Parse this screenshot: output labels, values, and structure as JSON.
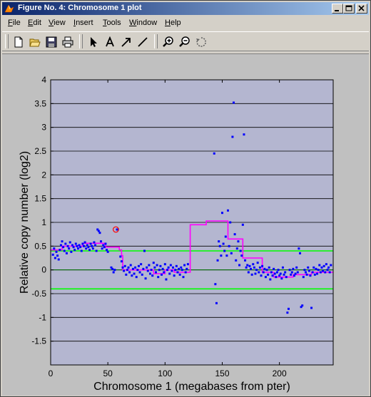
{
  "window": {
    "title": "Figure No. 4: Chromosome 1 plot",
    "controls": [
      "minimize",
      "maximize",
      "close"
    ]
  },
  "menu": {
    "items": [
      {
        "label": "File",
        "key": "F"
      },
      {
        "label": "Edit",
        "key": "E"
      },
      {
        "label": "View",
        "key": "V"
      },
      {
        "label": "Insert",
        "key": "I"
      },
      {
        "label": "Tools",
        "key": "T"
      },
      {
        "label": "Window",
        "key": "W"
      },
      {
        "label": "Help",
        "key": "H"
      }
    ]
  },
  "toolbar": {
    "tools": [
      "new-file-icon",
      "open-folder-icon",
      "save-icon",
      "print-icon",
      "select-arrow-icon",
      "text-icon",
      "arrow-icon",
      "line-icon",
      "zoom-in-icon",
      "zoom-out-icon",
      "rotate-icon"
    ]
  },
  "colors": {
    "plot_bg": "#b4b6d0",
    "figure_bg": "#c0c0c0",
    "points": "#0000ff",
    "segments": "#ff00ff",
    "threshold": "#00ff00",
    "highlight": "#ff0000"
  },
  "chart_data": {
    "type": "scatter",
    "title": "",
    "xlabel": "Chromosome 1 (megabases from pter)",
    "ylabel": "Relative copy number (log2)",
    "xlim": [
      0,
      247
    ],
    "ylim": [
      -2,
      4
    ],
    "xticks": [
      0,
      50,
      100,
      150,
      200
    ],
    "yticks": [
      -1.5,
      -1,
      -0.5,
      0,
      0.5,
      1,
      1.5,
      2,
      2.5,
      3,
      3.5,
      4
    ],
    "ytick_labels": [
      "-1.5",
      "-1",
      "-0.5",
      "0",
      "0.5",
      "1",
      "1.5",
      "2",
      "2.5",
      "3",
      "3.5",
      "4"
    ],
    "grid": "horizontal",
    "thresholds": [
      0.4,
      -0.4
    ],
    "zero_line": 0,
    "points": [
      [
        2,
        0.32
      ],
      [
        3,
        0.45
      ],
      [
        4,
        0.25
      ],
      [
        5,
        0.38
      ],
      [
        6,
        0.3
      ],
      [
        7,
        0.22
      ],
      [
        8,
        0.42
      ],
      [
        9,
        0.52
      ],
      [
        10,
        0.6
      ],
      [
        11,
        0.48
      ],
      [
        12,
        0.4
      ],
      [
        13,
        0.55
      ],
      [
        14,
        0.35
      ],
      [
        15,
        0.5
      ],
      [
        16,
        0.45
      ],
      [
        17,
        0.58
      ],
      [
        18,
        0.38
      ],
      [
        19,
        0.52
      ],
      [
        20,
        0.48
      ],
      [
        21,
        0.42
      ],
      [
        22,
        0.55
      ],
      [
        23,
        0.5
      ],
      [
        24,
        0.45
      ],
      [
        25,
        0.52
      ],
      [
        26,
        0.48
      ],
      [
        27,
        0.4
      ],
      [
        28,
        0.55
      ],
      [
        29,
        0.5
      ],
      [
        30,
        0.58
      ],
      [
        31,
        0.45
      ],
      [
        32,
        0.52
      ],
      [
        33,
        0.48
      ],
      [
        34,
        0.42
      ],
      [
        35,
        0.55
      ],
      [
        36,
        0.5
      ],
      [
        37,
        0.45
      ],
      [
        38,
        0.58
      ],
      [
        39,
        0.52
      ],
      [
        40,
        0.4
      ],
      [
        41,
        0.85
      ],
      [
        42,
        0.82
      ],
      [
        43,
        0.78
      ],
      [
        44,
        0.6
      ],
      [
        45,
        0.45
      ],
      [
        46,
        0.52
      ],
      [
        47,
        0.48
      ],
      [
        48,
        0.55
      ],
      [
        49,
        0.42
      ],
      [
        50,
        0.38
      ],
      [
        53,
        0.05
      ],
      [
        54,
        0.02
      ],
      [
        55,
        -0.05
      ],
      [
        56,
        0.0
      ],
      [
        58,
        0.85
      ],
      [
        61,
        0.28
      ],
      [
        62,
        0.18
      ],
      [
        63,
        0.05
      ],
      [
        64,
        -0.02
      ],
      [
        65,
        0.08
      ],
      [
        66,
        -0.1
      ],
      [
        67,
        0.0
      ],
      [
        68,
        0.05
      ],
      [
        69,
        -0.05
      ],
      [
        70,
        0.1
      ],
      [
        71,
        -0.12
      ],
      [
        72,
        0.02
      ],
      [
        73,
        -0.08
      ],
      [
        74,
        0.05
      ],
      [
        75,
        -0.15
      ],
      [
        76,
        0.0
      ],
      [
        77,
        0.08
      ],
      [
        78,
        -0.05
      ],
      [
        79,
        0.12
      ],
      [
        80,
        -0.1
      ],
      [
        81,
        0.02
      ],
      [
        82,
        0.4
      ],
      [
        83,
        -0.18
      ],
      [
        84,
        0.05
      ],
      [
        85,
        -0.02
      ],
      [
        86,
        0.1
      ],
      [
        87,
        -0.08
      ],
      [
        88,
        0.0
      ],
      [
        89,
        -0.12
      ],
      [
        90,
        0.15
      ],
      [
        91,
        0.05
      ],
      [
        92,
        -0.05
      ],
      [
        93,
        0.1
      ],
      [
        94,
        -0.15
      ],
      [
        95,
        0.0
      ],
      [
        96,
        0.08
      ],
      [
        97,
        -0.1
      ],
      [
        98,
        0.02
      ],
      [
        99,
        -0.05
      ],
      [
        100,
        0.12
      ],
      [
        101,
        -0.2
      ],
      [
        102,
        0.0
      ],
      [
        103,
        0.05
      ],
      [
        104,
        -0.08
      ],
      [
        105,
        0.1
      ],
      [
        106,
        -0.02
      ],
      [
        107,
        0.05
      ],
      [
        108,
        -0.12
      ],
      [
        109,
        0.0
      ],
      [
        110,
        0.08
      ],
      [
        111,
        -0.05
      ],
      [
        112,
        0.02
      ],
      [
        113,
        -0.1
      ],
      [
        114,
        0.05
      ],
      [
        115,
        0.0
      ],
      [
        116,
        -0.15
      ],
      [
        117,
        0.1
      ],
      [
        118,
        -0.05
      ],
      [
        119,
        0.02
      ],
      [
        120,
        0.12
      ],
      [
        143,
        2.45
      ],
      [
        144,
        -0.3
      ],
      [
        145,
        -0.7
      ],
      [
        146,
        0.2
      ],
      [
        147,
        0.6
      ],
      [
        148,
        0.5
      ],
      [
        149,
        0.3
      ],
      [
        150,
        1.2
      ],
      [
        151,
        0.55
      ],
      [
        152,
        0.4
      ],
      [
        153,
        0.7
      ],
      [
        154,
        0.3
      ],
      [
        155,
        1.25
      ],
      [
        156,
        0.5
      ],
      [
        157,
        1.0
      ],
      [
        158,
        0.35
      ],
      [
        159,
        2.8
      ],
      [
        160,
        3.52
      ],
      [
        161,
        0.75
      ],
      [
        162,
        0.2
      ],
      [
        163,
        0.45
      ],
      [
        164,
        0.6
      ],
      [
        165,
        0.1
      ],
      [
        166,
        0.4
      ],
      [
        167,
        0.3
      ],
      [
        168,
        0.95
      ],
      [
        169,
        2.85
      ],
      [
        170,
        0.2
      ],
      [
        171,
        0.05
      ],
      [
        172,
        0.1
      ],
      [
        173,
        -0.05
      ],
      [
        174,
        0.08
      ],
      [
        175,
        0.02
      ],
      [
        176,
        -0.1
      ],
      [
        177,
        0.12
      ],
      [
        178,
        0.05
      ],
      [
        179,
        -0.08
      ],
      [
        180,
        0.0
      ],
      [
        181,
        0.15
      ],
      [
        182,
        -0.05
      ],
      [
        183,
        0.05
      ],
      [
        184,
        -0.12
      ],
      [
        185,
        0.08
      ],
      [
        186,
        -0.05
      ],
      [
        187,
        0.02
      ],
      [
        188,
        -0.15
      ],
      [
        189,
        0.0
      ],
      [
        190,
        -0.1
      ],
      [
        191,
        0.05
      ],
      [
        192,
        -0.2
      ],
      [
        193,
        -0.05
      ],
      [
        194,
        -0.12
      ],
      [
        195,
        0.02
      ],
      [
        196,
        -0.08
      ],
      [
        197,
        -0.15
      ],
      [
        198,
        -0.05
      ],
      [
        199,
        0.0
      ],
      [
        200,
        -0.12
      ],
      [
        201,
        -0.08
      ],
      [
        202,
        -0.18
      ],
      [
        203,
        0.05
      ],
      [
        204,
        -0.1
      ],
      [
        205,
        -0.05
      ],
      [
        206,
        -0.15
      ],
      [
        207,
        -0.9
      ],
      [
        208,
        -0.82
      ],
      [
        209,
        0.0
      ],
      [
        210,
        -0.1
      ],
      [
        211,
        -0.05
      ],
      [
        212,
        0.02
      ],
      [
        213,
        -0.12
      ],
      [
        214,
        -0.08
      ],
      [
        215,
        0.05
      ],
      [
        216,
        -0.05
      ],
      [
        217,
        0.45
      ],
      [
        218,
        0.35
      ],
      [
        219,
        -0.78
      ],
      [
        220,
        -0.75
      ],
      [
        221,
        -0.15
      ],
      [
        222,
        0.0
      ],
      [
        223,
        -0.05
      ],
      [
        224,
        -0.1
      ],
      [
        225,
        0.05
      ],
      [
        226,
        -0.02
      ],
      [
        227,
        -0.12
      ],
      [
        228,
        -0.8
      ],
      [
        229,
        -0.05
      ],
      [
        230,
        0.05
      ],
      [
        231,
        -0.1
      ],
      [
        232,
        0.02
      ],
      [
        233,
        -0.08
      ],
      [
        234,
        0.0
      ],
      [
        235,
        0.1
      ],
      [
        236,
        -0.05
      ],
      [
        237,
        0.05
      ],
      [
        238,
        -0.02
      ],
      [
        239,
        0.08
      ],
      [
        240,
        -0.05
      ],
      [
        241,
        0.12
      ],
      [
        242,
        0.0
      ],
      [
        243,
        0.05
      ],
      [
        244,
        -0.05
      ],
      [
        245,
        0.1
      ]
    ],
    "highlighted_point": [
      57,
      0.85
    ],
    "segments": [
      {
        "x": [
          0,
          10
        ],
        "y": 0.42
      },
      {
        "x": [
          10,
          28
        ],
        "y": 0.5
      },
      {
        "x": [
          28,
          48
        ],
        "y": 0.56
      },
      {
        "x": [
          48,
          60
        ],
        "y": 0.48
      },
      {
        "x": [
          60,
          62
        ],
        "y": 0.42
      },
      {
        "x": [
          62,
          63
        ],
        "y": 0.3
      },
      {
        "x": [
          63,
          90
        ],
        "y": 0.0
      },
      {
        "x": [
          90,
          100
        ],
        "y": -0.08
      },
      {
        "x": [
          100,
          108
        ],
        "y": 0.0
      },
      {
        "x": [
          108,
          122
        ],
        "y": -0.05
      },
      {
        "x": [
          122,
          136
        ],
        "y": 0.95
      },
      {
        "x": [
          136,
          155
        ],
        "y": 1.03
      },
      {
        "x": [
          155,
          168
        ],
        "y": 0.65
      },
      {
        "x": [
          168,
          185
        ],
        "y": 0.25
      },
      {
        "x": [
          185,
          195
        ],
        "y": -0.05
      },
      {
        "x": [
          195,
          212
        ],
        "y": -0.15
      },
      {
        "x": [
          212,
          228
        ],
        "y": -0.1
      },
      {
        "x": [
          228,
          247
        ],
        "y": -0.05
      }
    ]
  }
}
